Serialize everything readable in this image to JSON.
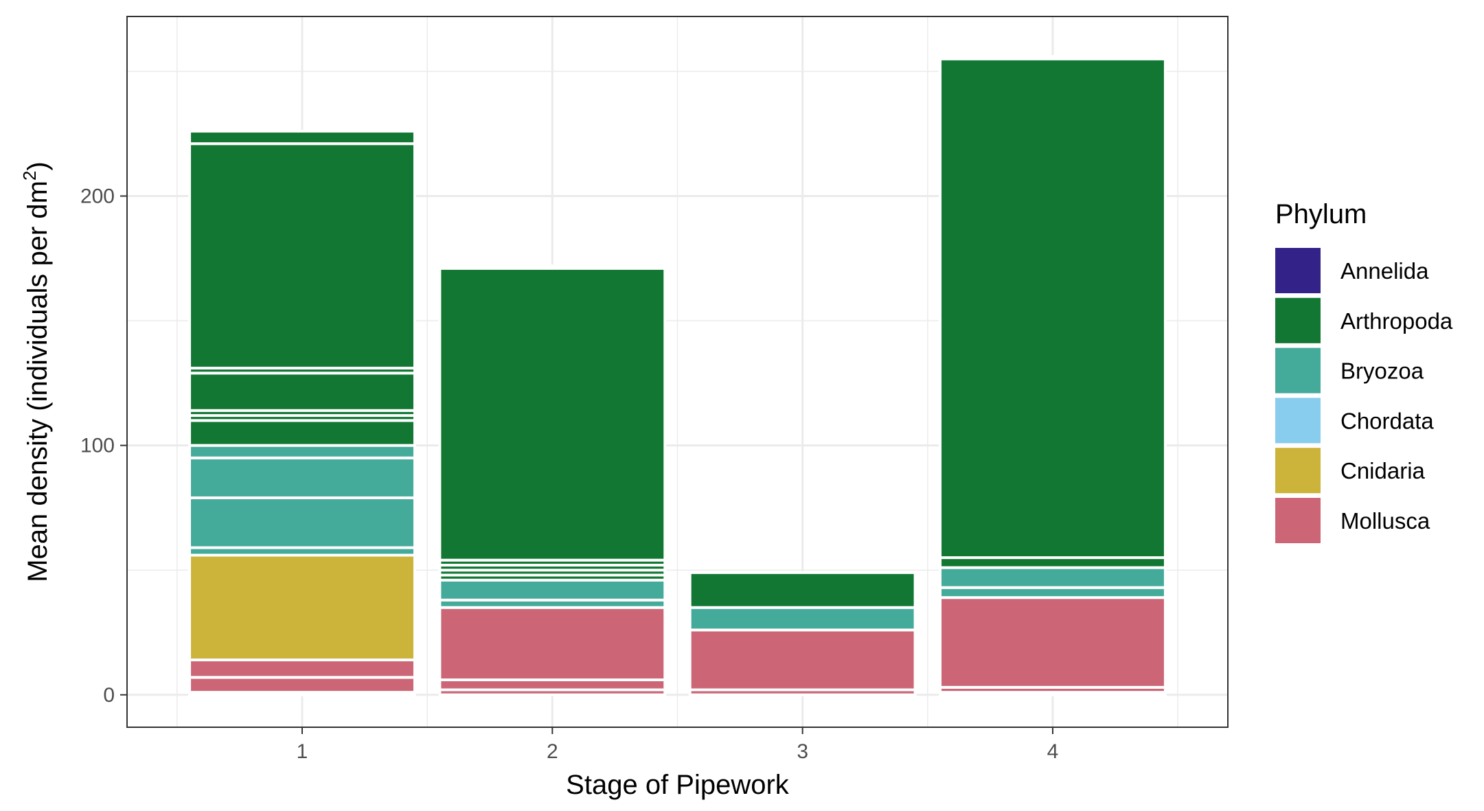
{
  "chart_data": {
    "type": "bar",
    "stacked": true,
    "xlabel": "Stage of Pipework",
    "ylabel_main": "Mean density (individuals per dm",
    "ylabel_sup": "2",
    "ylabel_end": ")",
    "categories": [
      "1",
      "2",
      "3",
      "4"
    ],
    "yticks": [
      0,
      100,
      200
    ],
    "ylim": [
      -13,
      272
    ],
    "grid": true,
    "legend": {
      "title": "Phylum",
      "position": "right",
      "entries": [
        {
          "name": "Annelida",
          "color": "#332288"
        },
        {
          "name": "Arthropoda",
          "color": "#117733"
        },
        {
          "name": "Bryozoa",
          "color": "#44AA99"
        },
        {
          "name": "Chordata",
          "color": "#88CCEE"
        },
        {
          "name": "Cnidaria",
          "color": "#CCB33A"
        },
        {
          "name": "Mollusca",
          "color": "#CC6677"
        }
      ]
    },
    "stacks": [
      {
        "category": "1",
        "segments": [
          {
            "phylum": "Mollusca",
            "value": 1
          },
          {
            "phylum": "Mollusca",
            "value": 6
          },
          {
            "phylum": "Mollusca",
            "value": 7
          },
          {
            "phylum": "Cnidaria",
            "value": 42
          },
          {
            "phylum": "Bryozoa",
            "value": 3
          },
          {
            "phylum": "Bryozoa",
            "value": 20
          },
          {
            "phylum": "Bryozoa",
            "value": 16
          },
          {
            "phylum": "Bryozoa",
            "value": 5
          },
          {
            "phylum": "Arthropoda",
            "value": 10
          },
          {
            "phylum": "Arthropoda",
            "value": 2
          },
          {
            "phylum": "Arthropoda",
            "value": 2
          },
          {
            "phylum": "Arthropoda",
            "value": 15
          },
          {
            "phylum": "Arthropoda",
            "value": 2
          },
          {
            "phylum": "Arthropoda",
            "value": 90
          },
          {
            "phylum": "Arthropoda",
            "value": 5
          }
        ]
      },
      {
        "category": "2",
        "segments": [
          {
            "phylum": "Mollusca",
            "value": 2
          },
          {
            "phylum": "Mollusca",
            "value": 4
          },
          {
            "phylum": "Mollusca",
            "value": 29
          },
          {
            "phylum": "Bryozoa",
            "value": 3
          },
          {
            "phylum": "Bryozoa",
            "value": 8
          },
          {
            "phylum": "Arthropoda",
            "value": 2
          },
          {
            "phylum": "Arthropoda",
            "value": 2
          },
          {
            "phylum": "Arthropoda",
            "value": 2
          },
          {
            "phylum": "Arthropoda",
            "value": 2
          },
          {
            "phylum": "Arthropoda",
            "value": 117
          },
          {
            "phylum": "Arthropoda",
            "value": 1
          }
        ]
      },
      {
        "category": "3",
        "segments": [
          {
            "phylum": "Mollusca",
            "value": 2
          },
          {
            "phylum": "Mollusca",
            "value": 24
          },
          {
            "phylum": "Bryozoa",
            "value": 9
          },
          {
            "phylum": "Arthropoda",
            "value": 14
          }
        ]
      },
      {
        "category": "4",
        "segments": [
          {
            "phylum": "Mollusca",
            "value": 1
          },
          {
            "phylum": "Mollusca",
            "value": 2
          },
          {
            "phylum": "Mollusca",
            "value": 36
          },
          {
            "phylum": "Bryozoa",
            "value": 4
          },
          {
            "phylum": "Bryozoa",
            "value": 8
          },
          {
            "phylum": "Arthropoda",
            "value": 4
          },
          {
            "phylum": "Arthropoda",
            "value": 200
          },
          {
            "phylum": "Arthropoda",
            "value": 1
          }
        ]
      }
    ]
  }
}
